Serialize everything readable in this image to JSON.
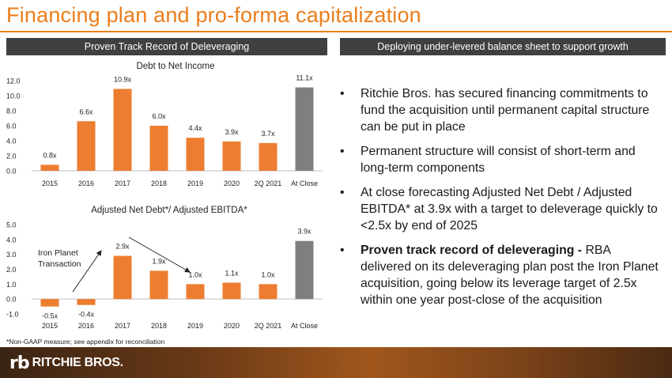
{
  "title": "Financing plan and pro-forma capitalization",
  "left_header": "Proven Track Record of Deleveraging",
  "right_header": "Deploying under-levered balance sheet to support growth",
  "bullets": [
    {
      "bold": "",
      "text": "Ritchie Bros. has secured financing commitments to fund the acquisition until permanent capital structure can be put in place"
    },
    {
      "bold": "",
      "text": "Permanent structure will consist of short-term and long-term components"
    },
    {
      "bold": "",
      "text": "At close forecasting Adjusted Net Debt / Adjusted EBITDA* at 3.9x with a target to deleverage quickly to <2.5x by end of 2025"
    },
    {
      "bold": "Proven track record of deleveraging -",
      "text": " RBA delivered on its deleveraging plan post the Iron Planet acquisition, going below its leverage target of 2.5x within one year post-close of the acquisition"
    }
  ],
  "footnote": "*Non-GAAP measure; see appendix for reconciliation",
  "logo_text": "RITCHIE BROS.",
  "logo_mark": "rb",
  "colors": {
    "accent": "#e97e1c",
    "bar_orange": "#ed7d31",
    "bar_gray": "#7f7f7f",
    "header_bg": "#404040"
  },
  "chart_data": [
    {
      "type": "bar",
      "title": "Debt to Net Income",
      "categories": [
        "2015",
        "2016",
        "2017",
        "2018",
        "2019",
        "2020",
        "2Q 2021",
        "At Close"
      ],
      "values": [
        0.8,
        6.6,
        10.9,
        6.0,
        4.4,
        3.9,
        3.7,
        11.1
      ],
      "data_labels": [
        "0.8x",
        "6.6x",
        "10.9x",
        "6.0x",
        "4.4x",
        "3.9x",
        "3.7x",
        "11.1x"
      ],
      "y_ticks": [
        "0.0",
        "2.0",
        "4.0",
        "6.0",
        "8.0",
        "10.0",
        "12.0"
      ],
      "ylim": [
        0,
        12
      ],
      "highlight_last": true
    },
    {
      "type": "bar",
      "title": "Adjusted Net Debt*/ Adjusted EBITDA*",
      "categories": [
        "2015",
        "2016",
        "2017",
        "2018",
        "2019",
        "2020",
        "2Q 2021",
        "At Close"
      ],
      "values": [
        -0.5,
        -0.4,
        2.9,
        1.9,
        1.0,
        1.1,
        1.0,
        3.9
      ],
      "data_labels": [
        "-0.5x",
        "-0.4x",
        "2.9x",
        "1.9x",
        "1.0x",
        "1.1x",
        "1.0x",
        "3.9x"
      ],
      "y_ticks": [
        "-1.0",
        "0.0",
        "1.0",
        "2.0",
        "3.0",
        "4.0",
        "5.0"
      ],
      "ylim": [
        -1,
        5
      ],
      "highlight_last": true,
      "annotation": "Iron Planet Transaction"
    }
  ]
}
